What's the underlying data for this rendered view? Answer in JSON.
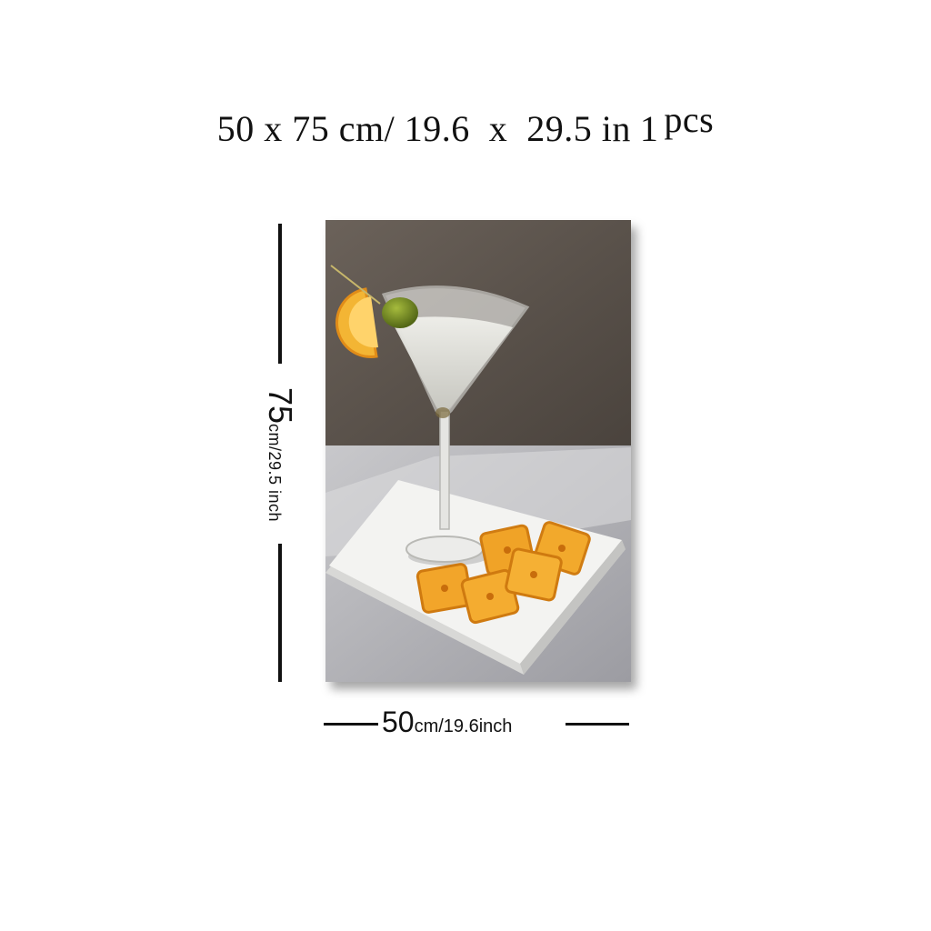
{
  "header": {
    "size_text": "50 x 75 cm/ 19.6  x  29.5 in",
    "qty_number": "1",
    "qty_unit": "pcs"
  },
  "height_dim": {
    "value": "75",
    "unit": "cm/29.5 inch"
  },
  "width_dim": {
    "value": "50",
    "unit": "cm/19.6inch"
  },
  "colors": {
    "wall": "#5e5650",
    "table": "#b9b9bb",
    "napkin": "#f1f1ef",
    "cracker": "#f0a327",
    "olive": "#6f8a1f",
    "lemon": "#f3b534"
  },
  "painting": {
    "subject_icons": [
      "martini-glass-icon",
      "olive-icon",
      "lemon-slice-icon",
      "cracker-icon",
      "napkin-icon"
    ]
  }
}
